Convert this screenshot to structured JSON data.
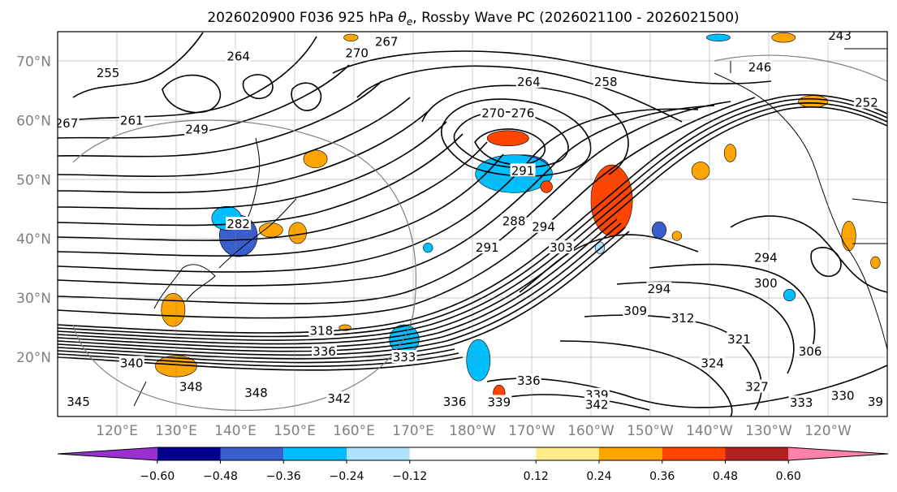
{
  "title": {
    "prefix": "2026020900 F036 925 hPa ",
    "symbol": "θ",
    "subscript": "e",
    "suffix": ", Rossby Wave PC (2026021100 - 2026021500)"
  },
  "map": {
    "lon_range": [
      110,
      250
    ],
    "lat_range": [
      10,
      75
    ],
    "lat_ticks": [
      {
        "value": 20,
        "label": "20°N"
      },
      {
        "value": 30,
        "label": "30°N"
      },
      {
        "value": 40,
        "label": "40°N"
      },
      {
        "value": 50,
        "label": "50°N"
      },
      {
        "value": 60,
        "label": "60°N"
      },
      {
        "value": 70,
        "label": "70°N"
      }
    ],
    "lon_ticks": [
      {
        "value": 120,
        "label": "120°E"
      },
      {
        "value": 130,
        "label": "130°E"
      },
      {
        "value": 140,
        "label": "140°E"
      },
      {
        "value": 150,
        "label": "150°E"
      },
      {
        "value": 160,
        "label": "160°E"
      },
      {
        "value": 170,
        "label": "170°E"
      },
      {
        "value": 180,
        "label": "180°W"
      },
      {
        "value": 190,
        "label": "170°W"
      },
      {
        "value": 200,
        "label": "160°W"
      },
      {
        "value": 210,
        "label": "150°W"
      },
      {
        "value": 220,
        "label": "140°W"
      },
      {
        "value": 230,
        "label": "130°W"
      },
      {
        "value": 240,
        "label": "120°W"
      }
    ],
    "grid_lons": [
      120,
      130,
      140,
      150,
      160,
      170,
      180,
      190,
      200,
      210,
      220,
      230,
      240
    ],
    "grid_lats": [
      20,
      30,
      40,
      50,
      60,
      70
    ],
    "grid": true
  },
  "contour_labels": [
    {
      "text": "267",
      "lon": 165.5,
      "lat": 73.3
    },
    {
      "text": "270",
      "lon": 160.5,
      "lat": 71.4
    },
    {
      "text": "264",
      "lon": 140.5,
      "lat": 70.8
    },
    {
      "text": "255",
      "lon": 118.5,
      "lat": 68.0
    },
    {
      "text": "267",
      "lon": 111.5,
      "lat": 59.5
    },
    {
      "text": "261",
      "lon": 122.5,
      "lat": 60.0
    },
    {
      "text": "249",
      "lon": 133.5,
      "lat": 58.5
    },
    {
      "text": "264",
      "lon": 189.5,
      "lat": 66.5
    },
    {
      "text": "258",
      "lon": 202.5,
      "lat": 66.5
    },
    {
      "text": "246",
      "lon": 228.5,
      "lat": 69.0
    },
    {
      "text": "243",
      "lon": 242.0,
      "lat": 74.3
    },
    {
      "text": "252",
      "lon": 246.5,
      "lat": 63.0
    },
    {
      "text": "270",
      "lon": 183.5,
      "lat": 61.2
    },
    {
      "text": "276",
      "lon": 188.5,
      "lat": 61.2
    },
    {
      "text": "291",
      "lon": 188.5,
      "lat": 51.5
    },
    {
      "text": "288",
      "lon": 187.0,
      "lat": 43.0
    },
    {
      "text": "294",
      "lon": 192.0,
      "lat": 42.0
    },
    {
      "text": "291",
      "lon": 182.5,
      "lat": 38.5
    },
    {
      "text": "303",
      "lon": 195.0,
      "lat": 38.5
    },
    {
      "text": "282",
      "lon": 140.5,
      "lat": 42.5
    },
    {
      "text": "294",
      "lon": 229.5,
      "lat": 36.8
    },
    {
      "text": "300",
      "lon": 229.5,
      "lat": 32.5
    },
    {
      "text": "294",
      "lon": 211.5,
      "lat": 31.5
    },
    {
      "text": "309",
      "lon": 207.5,
      "lat": 27.8
    },
    {
      "text": "312",
      "lon": 215.5,
      "lat": 26.6
    },
    {
      "text": "318",
      "lon": 154.5,
      "lat": 24.5
    },
    {
      "text": "336",
      "lon": 155.0,
      "lat": 21.0
    },
    {
      "text": "321",
      "lon": 225.0,
      "lat": 23.0
    },
    {
      "text": "306",
      "lon": 237.0,
      "lat": 21.0
    },
    {
      "text": "324",
      "lon": 220.5,
      "lat": 19.0
    },
    {
      "text": "327",
      "lon": 228.0,
      "lat": 15.0
    },
    {
      "text": "333",
      "lon": 168.5,
      "lat": 20.0
    },
    {
      "text": "336",
      "lon": 189.5,
      "lat": 16.0
    },
    {
      "text": "340",
      "lon": 122.5,
      "lat": 19.0
    },
    {
      "text": "348",
      "lon": 132.5,
      "lat": 15.0
    },
    {
      "text": "348",
      "lon": 143.5,
      "lat": 14.0
    },
    {
      "text": "342",
      "lon": 157.5,
      "lat": 13.0
    },
    {
      "text": "336",
      "lon": 177.0,
      "lat": 12.5
    },
    {
      "text": "339",
      "lon": 184.5,
      "lat": 12.4
    },
    {
      "text": "339",
      "lon": 201.0,
      "lat": 13.6
    },
    {
      "text": "342",
      "lon": 201.0,
      "lat": 12.0
    },
    {
      "text": "333",
      "lon": 235.5,
      "lat": 12.3
    },
    {
      "text": "330",
      "lon": 242.5,
      "lat": 13.5
    },
    {
      "text": "39",
      "lon": 248.0,
      "lat": 12.5
    },
    {
      "text": "345",
      "lon": 113.5,
      "lat": 12.5
    }
  ],
  "colorbar": {
    "boundaries": [
      -0.72,
      -0.6,
      -0.48,
      -0.36,
      -0.24,
      -0.12,
      0.12,
      0.24,
      0.36,
      0.48,
      0.6,
      0.72
    ],
    "colors": [
      "#9b30d0",
      "#00008b",
      "#3a5fcd",
      "#00bfff",
      "#b0e2ff",
      "#ffffff",
      "#ffec8b",
      "#ffa500",
      "#ff4500",
      "#b22222",
      "#ff82ab"
    ],
    "extend_min_color": "#9b30d0",
    "extend_max_color": "#ff82ab",
    "tick_labels": [
      "−0.60",
      "−0.48",
      "−0.36",
      "−0.24",
      "−0.12",
      "0.12",
      "0.24",
      "0.36",
      "0.48",
      "0.60"
    ],
    "tick_values": [
      -0.6,
      -0.48,
      -0.36,
      -0.24,
      -0.12,
      0.12,
      0.24,
      0.36,
      0.48,
      0.6
    ]
  },
  "shading": [
    {
      "lon": 140.5,
      "lat": 40.5,
      "value": -0.4,
      "rlon": 3.2,
      "rlat": 3.5
    },
    {
      "lon": 138.5,
      "lat": 43.5,
      "value": -0.3,
      "rlon": 2.5,
      "rlat": 2.0
    },
    {
      "lon": 188.5,
      "lat": 52.0,
      "value": -0.42,
      "rlon": 4.5,
      "rlat": 2.2
    },
    {
      "lon": 187.0,
      "lat": 51.0,
      "value": -0.28,
      "rlon": 6.5,
      "rlat": 3.2
    },
    {
      "lon": 186.0,
      "lat": 57.0,
      "value": 0.38,
      "rlon": 3.5,
      "rlat": 1.3
    },
    {
      "lon": 203.5,
      "lat": 46.5,
      "value": 0.4,
      "rlon": 3.5,
      "rlat": 6.0
    },
    {
      "lon": 168.5,
      "lat": 23.0,
      "value": -0.3,
      "rlon": 2.5,
      "rlat": 2.5
    },
    {
      "lon": 181.0,
      "lat": 19.5,
      "value": -0.28,
      "rlon": 2.0,
      "rlat": 3.5
    },
    {
      "lon": 130.0,
      "lat": 18.5,
      "value": 0.34,
      "rlon": 3.5,
      "rlat": 1.8
    },
    {
      "lon": 129.5,
      "lat": 28.0,
      "value": 0.26,
      "rlon": 2.0,
      "rlat": 2.8
    },
    {
      "lon": 150.5,
      "lat": 41.0,
      "value": 0.28,
      "rlon": 1.5,
      "rlat": 1.8
    },
    {
      "lon": 146.0,
      "lat": 41.5,
      "value": 0.3,
      "rlon": 2.0,
      "rlat": 1.2
    },
    {
      "lon": 153.5,
      "lat": 53.5,
      "value": 0.28,
      "rlon": 2.0,
      "rlat": 1.5
    },
    {
      "lon": 184.5,
      "lat": 14.0,
      "value": 0.4,
      "rlon": 1.0,
      "rlat": 1.3
    },
    {
      "lon": 211.5,
      "lat": 41.5,
      "value": -0.4,
      "rlon": 1.2,
      "rlat": 1.4
    },
    {
      "lon": 218.5,
      "lat": 51.5,
      "value": 0.28,
      "rlon": 1.5,
      "rlat": 1.5
    },
    {
      "lon": 243.5,
      "lat": 40.5,
      "value": 0.28,
      "rlon": 1.2,
      "rlat": 2.5
    },
    {
      "lon": 192.5,
      "lat": 48.8,
      "value": 0.36,
      "rlon": 1.0,
      "rlat": 1.0
    },
    {
      "lon": 223.5,
      "lat": 54.5,
      "value": 0.26,
      "rlon": 1.0,
      "rlat": 1.5
    },
    {
      "lon": 232.5,
      "lat": 74.0,
      "value": 0.28,
      "rlon": 2.0,
      "rlat": 0.8
    },
    {
      "lon": 237.5,
      "lat": 63.2,
      "value": 0.35,
      "rlon": 2.5,
      "rlat": 1.0
    },
    {
      "lon": 159.5,
      "lat": 74.0,
      "value": 0.26,
      "rlon": 1.2,
      "rlat": 0.6
    },
    {
      "lon": 221.5,
      "lat": 74.0,
      "value": -0.28,
      "rlon": 2.0,
      "rlat": 0.6
    },
    {
      "lon": 172.5,
      "lat": 38.5,
      "value": -0.28,
      "rlon": 0.8,
      "rlat": 0.8
    },
    {
      "lon": 201.5,
      "lat": 38.5,
      "value": -0.24,
      "rlon": 0.8,
      "rlat": 1.0
    },
    {
      "lon": 214.5,
      "lat": 40.5,
      "value": 0.24,
      "rlon": 0.8,
      "rlat": 0.8
    },
    {
      "lon": 158.5,
      "lat": 25.0,
      "value": 0.26,
      "rlon": 1.0,
      "rlat": 0.5
    },
    {
      "lon": 233.5,
      "lat": 30.5,
      "value": -0.28,
      "rlon": 1.0,
      "rlat": 1.0
    },
    {
      "lon": 248.0,
      "lat": 36.0,
      "value": 0.26,
      "rlon": 0.8,
      "rlat": 1.0
    }
  ]
}
